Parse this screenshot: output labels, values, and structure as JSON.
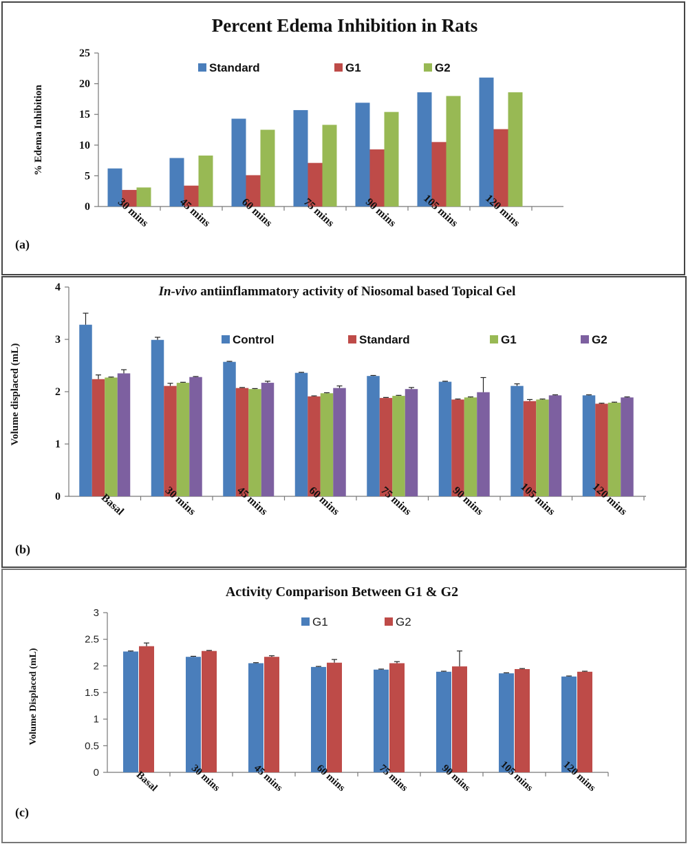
{
  "chart_data": [
    {
      "type": "bar",
      "panel_label": "(a)",
      "title": "Percent Edema Inhibition in Rats",
      "ylabel": "% Edema Inhibition",
      "xlabel": "",
      "ylim": [
        0,
        25
      ],
      "yticks": [
        "0",
        "5",
        "10",
        "15",
        "20",
        "25"
      ],
      "categories": [
        "30 mins",
        "45 mins",
        "60 mins",
        "75 mins",
        "90 mins",
        "105 mins",
        "120 mins"
      ],
      "series": [
        {
          "name": "Standard",
          "color": "#4a7ebb",
          "values": [
            6.2,
            7.9,
            14.3,
            15.7,
            16.9,
            18.6,
            21.0
          ]
        },
        {
          "name": "G1",
          "color": "#be4b48",
          "values": [
            2.7,
            3.4,
            5.1,
            7.1,
            9.3,
            10.5,
            12.6
          ]
        },
        {
          "name": "G2",
          "color": "#98b954",
          "values": [
            3.1,
            8.3,
            12.5,
            13.3,
            15.4,
            18.0,
            18.6
          ]
        }
      ],
      "grid": false,
      "legend": "top"
    },
    {
      "type": "bar",
      "panel_label": "(b)",
      "title_em": "In-vivo",
      "title": " antiinflammatory activity of Niosomal based Topical Gel",
      "ylabel": "Volume displaced (mL)",
      "xlabel": "",
      "ylim": [
        0,
        4
      ],
      "yticks": [
        "0",
        "1",
        "2",
        "3",
        "4"
      ],
      "categories": [
        "Basal",
        "30 mins",
        "45 mins",
        "60 mins",
        "75 mins",
        "90 mins",
        "105 mins",
        "120 mins"
      ],
      "series": [
        {
          "name": "Control",
          "color": "#4a7ebb",
          "values": [
            3.28,
            2.99,
            2.57,
            2.36,
            2.3,
            2.19,
            2.11,
            1.93
          ],
          "errors": [
            0.22,
            0.05,
            0.01,
            0.01,
            0.01,
            0.01,
            0.04,
            0.01
          ]
        },
        {
          "name": "Standard",
          "color": "#be4b48",
          "values": [
            2.24,
            2.11,
            2.07,
            1.91,
            1.88,
            1.85,
            1.82,
            1.77
          ],
          "errors": [
            0.08,
            0.05,
            0.01,
            0.01,
            0.01,
            0.01,
            0.03,
            0.01
          ]
        },
        {
          "name": "G1",
          "color": "#98b954",
          "values": [
            2.27,
            2.17,
            2.05,
            1.97,
            1.92,
            1.89,
            1.85,
            1.79
          ],
          "errors": [
            0.01,
            0.01,
            0.01,
            0.01,
            0.01,
            0.01,
            0.01,
            0.01
          ]
        },
        {
          "name": "G2",
          "color": "#7d60a0",
          "values": [
            2.35,
            2.28,
            2.17,
            2.07,
            2.05,
            1.99,
            1.93,
            1.89
          ],
          "errors": [
            0.07,
            0.01,
            0.03,
            0.04,
            0.03,
            0.28,
            0.01,
            0.01
          ]
        }
      ],
      "grid": false,
      "legend": "top"
    },
    {
      "type": "bar",
      "panel_label": "(c)",
      "title": "Activity Comparison Between G1 & G2",
      "ylabel": "Volume Displaced (mL)",
      "xlabel": "",
      "ylim": [
        0,
        3
      ],
      "yticks": [
        "0",
        "0.5",
        "1",
        "1.5",
        "2",
        "2.5",
        "3"
      ],
      "categories": [
        "Basal",
        "30 mins",
        "45 mins",
        "60 mins",
        "75 mins",
        "90 mins",
        "105 mins",
        "120 mins"
      ],
      "series": [
        {
          "name": "G1",
          "color": "#4a7ebb",
          "values": [
            2.27,
            2.17,
            2.05,
            1.98,
            1.93,
            1.89,
            1.86,
            1.8
          ],
          "errors": [
            0.01,
            0.01,
            0.01,
            0.01,
            0.01,
            0.01,
            0.01,
            0.01
          ]
        },
        {
          "name": "G2",
          "color": "#be4b48",
          "values": [
            2.37,
            2.28,
            2.17,
            2.06,
            2.05,
            1.99,
            1.94,
            1.89
          ],
          "errors": [
            0.06,
            0.01,
            0.02,
            0.06,
            0.03,
            0.29,
            0.01,
            0.01
          ]
        }
      ],
      "grid": false,
      "legend": "top"
    }
  ]
}
